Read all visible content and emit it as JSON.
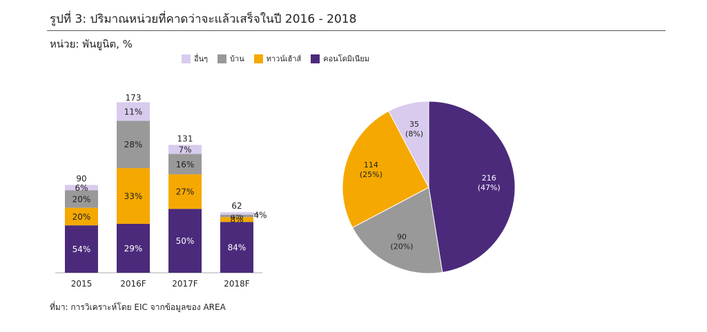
{
  "header": {
    "title": "รูปที่ 3: ปริมาณหน่วยที่คาดว่าจะแล้วเสร็จในปี 2016 - 2018",
    "unit": "หน่วย: พันยูนิต, %"
  },
  "source": "ที่มา: การวิเคราะห์โดย EIC จากข้อมูลของ AREA",
  "chart_data": [
    {
      "type": "bar",
      "stacked": true,
      "categories": [
        "2015",
        "2016F",
        "2017F",
        "2018F"
      ],
      "totals": [
        90,
        173,
        131,
        62
      ],
      "total_labels": [
        "90",
        "173",
        "131",
        "62"
      ],
      "ylim": [
        0,
        180
      ],
      "grid": false,
      "legend_position": "top",
      "series": [
        {
          "name": "คอนโดมิเนียม",
          "color": "#4b2a7b",
          "label_color": "#ffffff",
          "percents": [
            54,
            29,
            50,
            84
          ],
          "labels": [
            "54%",
            "29%",
            "50%",
            "84%"
          ]
        },
        {
          "name": "ทาวน์เฮ้าส์",
          "color": "#f5a800",
          "label_color": "#222222",
          "percents": [
            20,
            33,
            27,
            8
          ],
          "labels": [
            "20%",
            "33%",
            "27%",
            "8%"
          ]
        },
        {
          "name": "บ้าน",
          "color": "#999999",
          "label_color": "#222222",
          "percents": [
            20,
            28,
            16,
            4
          ],
          "labels": [
            "20%",
            "28%",
            "16%",
            "4%"
          ]
        },
        {
          "name": "อื่นๆ",
          "color": "#d8cbee",
          "label_color": "#222222",
          "percents": [
            6,
            11,
            7,
            4
          ],
          "labels": [
            "6%",
            "11%",
            "7%",
            "4%"
          ]
        }
      ],
      "legend_order": [
        3,
        2,
        1,
        0
      ]
    },
    {
      "type": "pie",
      "slices": [
        {
          "name": "คอนโดมิเนียม",
          "value": 216,
          "percent": 47,
          "label": "216",
          "pct_label": "(47%)",
          "color": "#4b2a7b",
          "label_color": "#ffffff"
        },
        {
          "name": "บ้าน",
          "value": 90,
          "percent": 20,
          "label": "90",
          "pct_label": "(20%)",
          "color": "#999999",
          "label_color": "#222222"
        },
        {
          "name": "ทาวน์เฮ้าส์",
          "value": 114,
          "percent": 25,
          "label": "114",
          "pct_label": "(25%)",
          "color": "#f5a800",
          "label_color": "#222222"
        },
        {
          "name": "อื่นๆ",
          "value": 35,
          "percent": 8,
          "label": "35",
          "pct_label": "(8%)",
          "color": "#d8cbee",
          "label_color": "#222222"
        }
      ]
    }
  ]
}
